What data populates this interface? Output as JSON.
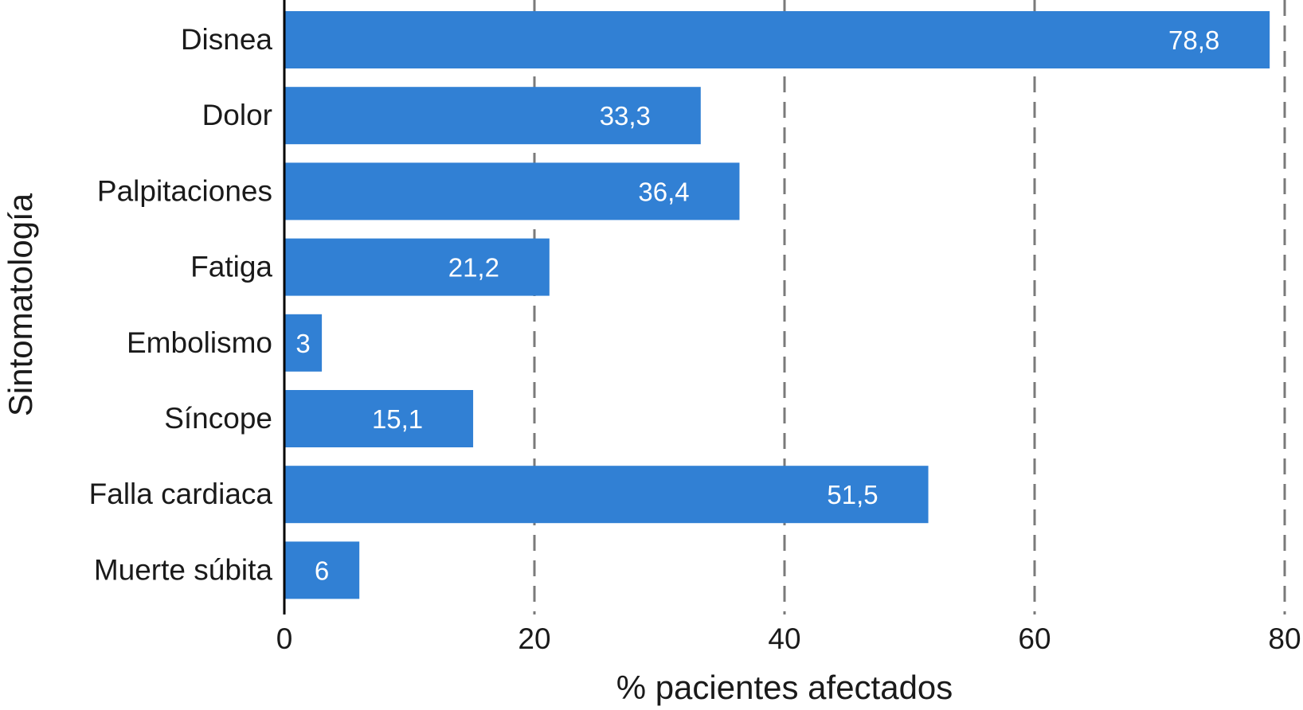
{
  "chart_data": {
    "type": "bar",
    "orientation": "horizontal",
    "categories": [
      "Disnea",
      "Dolor",
      "Palpitaciones",
      "Fatiga",
      "Embolismo",
      "Síncope",
      "Falla cardiaca",
      "Muerte súbita"
    ],
    "values": [
      78.8,
      33.3,
      36.4,
      21.2,
      3,
      15.1,
      51.5,
      6
    ],
    "data_labels": [
      "78,8",
      "33,3",
      "36,4",
      "21,2",
      "3",
      "15,1",
      "51,5",
      "6"
    ],
    "xlabel": "% pacientes afectados",
    "ylabel": "Sintomatología",
    "xlim": [
      0,
      80
    ],
    "xticks": [
      0,
      20,
      40,
      60,
      80
    ],
    "xtick_labels": [
      "0",
      "20",
      "40",
      "60",
      "80"
    ],
    "grid": "vertical dashed",
    "bar_color": "#3180d4",
    "grid_color": "#7a7a7a",
    "legend": "none"
  }
}
